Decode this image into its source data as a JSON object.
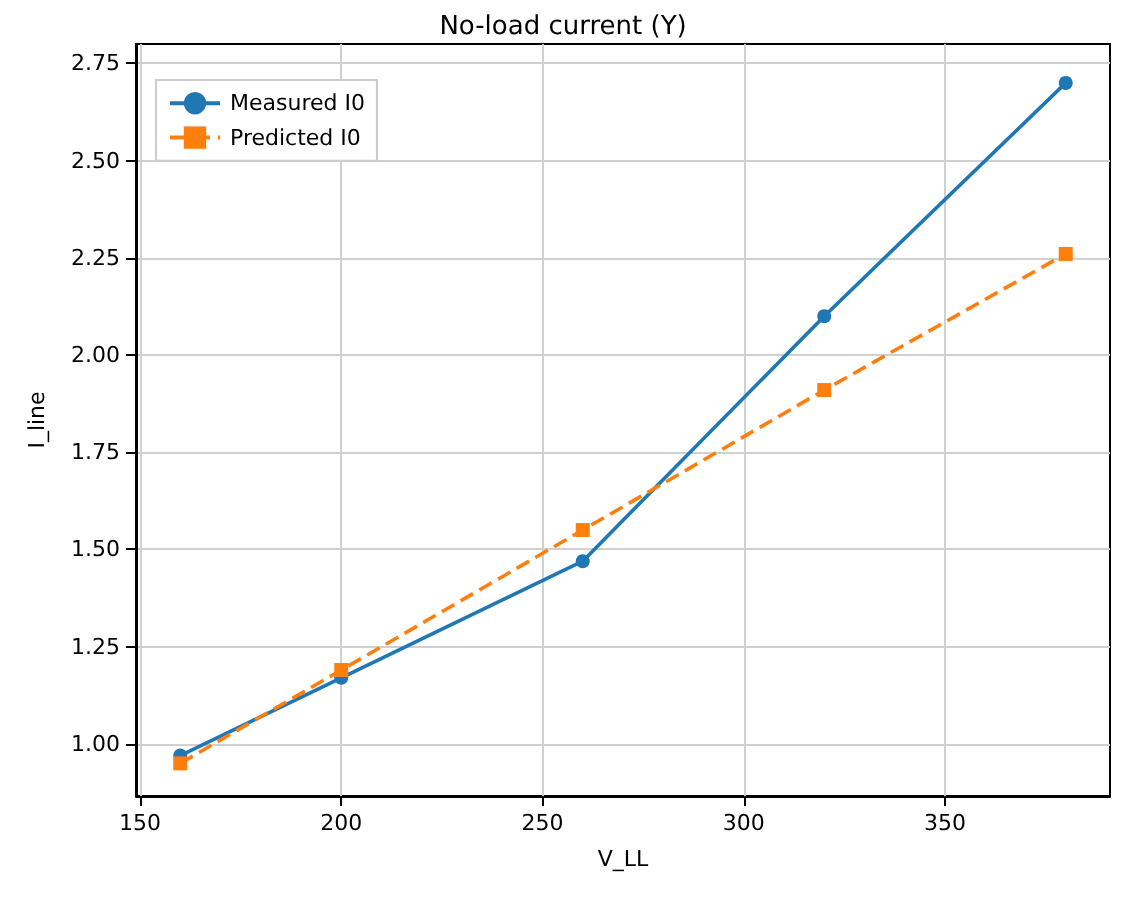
{
  "chart_data": {
    "type": "line",
    "title": "No-load current (Y)",
    "xlabel": "V_LL",
    "ylabel": "I_line",
    "x": [
      160,
      200,
      260,
      320,
      380
    ],
    "series": [
      {
        "name": "Measured I0",
        "color": "#1f77b4",
        "values": [
          0.97,
          1.17,
          1.47,
          2.1,
          2.7
        ],
        "marker": "circle",
        "line_style": "solid"
      },
      {
        "name": "Predicted I0",
        "color": "#ff7f0e",
        "values": [
          0.95,
          1.19,
          1.55,
          1.91,
          2.26
        ],
        "marker": "square",
        "line_style": "dashed"
      }
    ],
    "xlim": [
      149,
      391
    ],
    "xticks": [
      150,
      200,
      250,
      300,
      350
    ],
    "ylim": [
      0.866,
      2.8
    ],
    "yticks": [
      {
        "value": 1,
        "label": "1.00"
      },
      {
        "value": 1.25,
        "label": "1.25"
      },
      {
        "value": 1.5,
        "label": "1.50"
      },
      {
        "value": 1.75,
        "label": "1.75"
      },
      {
        "value": 2,
        "label": "2.00"
      },
      {
        "value": 2.25,
        "label": "2.25"
      },
      {
        "value": 2.5,
        "label": "2.50"
      },
      {
        "value": 2.75,
        "label": "2.75"
      }
    ],
    "grid": true,
    "legend": "top left"
  }
}
